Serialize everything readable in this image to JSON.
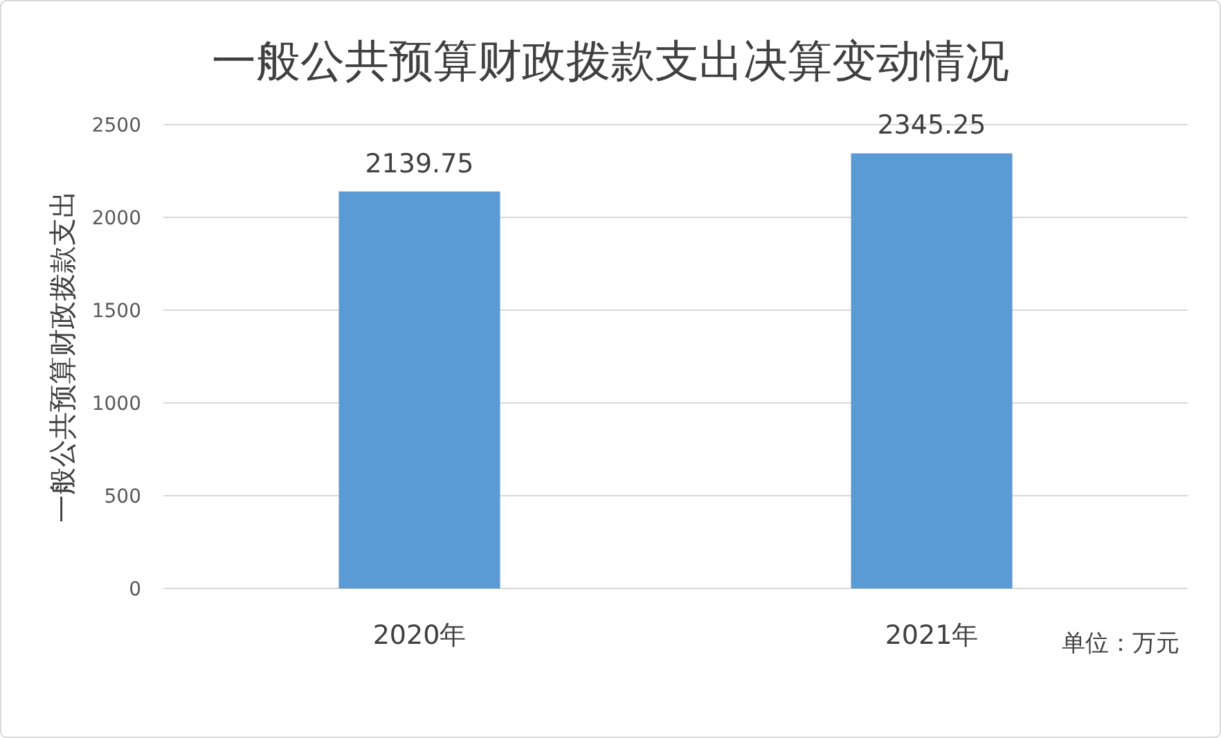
{
  "chart_data": {
    "type": "bar",
    "title": "一般公共预算财政拨款支出决算变动情况",
    "ylabel": "一般公共预算财政拨款支出",
    "categories": [
      "2020年",
      "2021年"
    ],
    "values": [
      2139.75,
      2345.25
    ],
    "color": "#5b9bd5",
    "ylim": [
      0,
      2500
    ],
    "yticks": [
      0,
      500,
      1000,
      1500,
      2000,
      2500
    ],
    "grid": "y",
    "data_labels": true,
    "annotations": [
      "单位：万元"
    ]
  }
}
